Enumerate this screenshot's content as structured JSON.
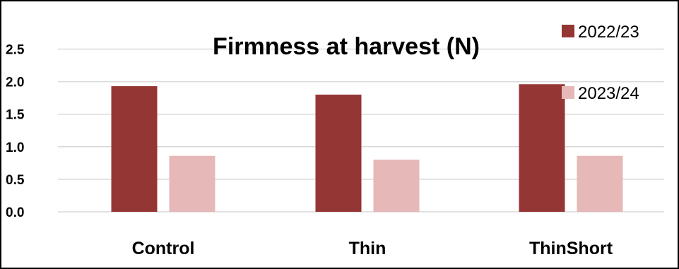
{
  "chart_data": {
    "type": "bar",
    "title": "Firmness at harvest (N)",
    "xlabel": "",
    "ylabel": "",
    "categories": [
      "Control",
      "Thin",
      "ThinShort"
    ],
    "series": [
      {
        "name": "2022/23",
        "values": [
          1.93,
          1.8,
          1.96
        ],
        "color": "#943634"
      },
      {
        "name": "2023/24",
        "values": [
          0.86,
          0.8,
          0.86
        ],
        "color": "#e6b8b7"
      }
    ],
    "ylim": [
      0,
      2.5
    ],
    "yticks": [
      "0.0",
      "0.5",
      "1.0",
      "1.5",
      "2.0",
      "2.5"
    ],
    "grid": true,
    "legend_position": "top-right",
    "colors": {
      "grid": "#d9d9d9",
      "border": "#000000",
      "text": "#000000"
    }
  }
}
